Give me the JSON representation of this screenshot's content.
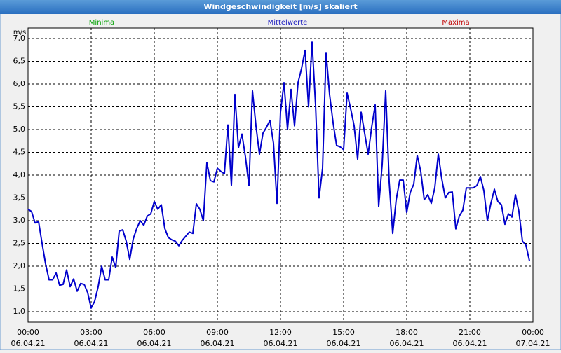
{
  "chart_data": {
    "type": "line",
    "title": "Windgeschwindigkeit [m/s] skaliert",
    "ylabel": "m/s",
    "legend": [
      {
        "name": "Minima",
        "color": "#00a000"
      },
      {
        "name": "Mittelwerte",
        "color": "#2020c0"
      },
      {
        "name": "Maxima",
        "color": "#c00000"
      }
    ],
    "series": [
      {
        "name": "Mittelwerte",
        "color": "#0000cc",
        "x": [
          0,
          10,
          20,
          30,
          40,
          50,
          60,
          70,
          80,
          90,
          100,
          110,
          120,
          130,
          140,
          150,
          160,
          170,
          180,
          190,
          200,
          210,
          220,
          230,
          240,
          250,
          260,
          270,
          280,
          290,
          300,
          310,
          320,
          330,
          340,
          350,
          360,
          370,
          380,
          390,
          400,
          410,
          420,
          430,
          440,
          450,
          460,
          470,
          480,
          490,
          500,
          510,
          520,
          530,
          540,
          550,
          560,
          570,
          580,
          590,
          600,
          610,
          620,
          630,
          640,
          650,
          660,
          670,
          680,
          690,
          700,
          710,
          720,
          730,
          740,
          750,
          760,
          770,
          780,
          790,
          800,
          810,
          820,
          830,
          840,
          850,
          860,
          870,
          880,
          890,
          900,
          910,
          920,
          930,
          940,
          950,
          960,
          970,
          980,
          990,
          1000,
          1010,
          1020,
          1030,
          1040,
          1050,
          1060,
          1070,
          1080,
          1090,
          1100,
          1110,
          1120,
          1130,
          1140,
          1150,
          1160,
          1170,
          1180,
          1190,
          1200,
          1210,
          1220,
          1230,
          1240,
          1250,
          1260,
          1270,
          1280,
          1290,
          1300,
          1310,
          1320,
          1330,
          1340,
          1350,
          1360,
          1370,
          1380,
          1390,
          1400,
          1410,
          1420,
          1430
        ],
        "values": [
          3.25,
          3.2,
          2.95,
          2.98,
          2.5,
          2.05,
          1.7,
          1.7,
          1.85,
          1.58,
          1.6,
          1.92,
          1.55,
          1.72,
          1.45,
          1.62,
          1.6,
          1.42,
          1.08,
          1.23,
          1.55,
          2.0,
          1.7,
          1.7,
          2.2,
          1.97,
          2.77,
          2.8,
          2.55,
          2.15,
          2.6,
          2.83,
          3.0,
          2.9,
          3.1,
          3.15,
          3.42,
          3.25,
          3.35,
          2.83,
          2.63,
          2.58,
          2.55,
          2.45,
          2.57,
          2.66,
          2.75,
          2.72,
          3.37,
          3.25,
          3.0,
          4.27,
          3.88,
          3.85,
          4.15,
          4.08,
          4.03,
          5.1,
          3.77,
          5.77,
          4.6,
          4.9,
          4.4,
          3.77,
          5.85,
          5.08,
          4.46,
          4.92,
          5.05,
          5.2,
          4.7,
          3.38,
          5.38,
          6.03,
          5.0,
          5.88,
          5.08,
          6.03,
          6.34,
          6.74,
          5.5,
          6.92,
          5.54,
          3.5,
          4.15,
          6.69,
          5.77,
          5.15,
          4.65,
          4.62,
          4.56,
          5.8,
          5.46,
          5.08,
          4.35,
          5.38,
          4.92,
          4.46,
          5.05,
          5.54,
          3.31,
          4.23,
          5.85,
          3.85,
          2.72,
          3.46,
          3.89,
          3.89,
          3.18,
          3.62,
          3.8,
          4.43,
          4.08,
          3.46,
          3.57,
          3.38,
          3.72,
          4.46,
          3.92,
          3.5,
          3.62,
          3.63,
          2.82,
          3.1,
          3.23,
          3.72,
          3.72,
          3.72,
          3.77,
          3.97,
          3.66,
          3.0,
          3.38,
          3.69,
          3.42,
          3.35,
          2.92,
          3.15,
          3.08,
          3.57,
          3.2,
          2.55,
          2.46,
          2.12
        ]
      }
    ],
    "xlim": [
      0,
      1440
    ],
    "xticks": [
      {
        "value": 0,
        "label": [
          "00:00",
          "06.04.21"
        ]
      },
      {
        "value": 180,
        "label": [
          "03:00",
          "06.04.21"
        ]
      },
      {
        "value": 360,
        "label": [
          "06:00",
          "06.04.21"
        ]
      },
      {
        "value": 540,
        "label": [
          "09:00",
          "06.04.21"
        ]
      },
      {
        "value": 720,
        "label": [
          "12:00",
          "06.04.21"
        ]
      },
      {
        "value": 900,
        "label": [
          "15:00",
          "06.04.21"
        ]
      },
      {
        "value": 1080,
        "label": [
          "18:00",
          "06.04.21"
        ]
      },
      {
        "value": 1260,
        "label": [
          "21:00",
          "06.04.21"
        ]
      },
      {
        "value": 1440,
        "label": [
          "00:00",
          "07.04.21"
        ]
      }
    ],
    "ylim": [
      0.77,
      7.23
    ],
    "yticks": [
      {
        "value": 1.0,
        "label": "1,0"
      },
      {
        "value": 1.5,
        "label": "1,5"
      },
      {
        "value": 2.0,
        "label": "2,0"
      },
      {
        "value": 2.5,
        "label": "2,5"
      },
      {
        "value": 3.0,
        "label": "3,0"
      },
      {
        "value": 3.5,
        "label": "3,5"
      },
      {
        "value": 4.0,
        "label": "4,0"
      },
      {
        "value": 4.5,
        "label": "4,5"
      },
      {
        "value": 5.0,
        "label": "5,0"
      },
      {
        "value": 5.5,
        "label": "5,5"
      },
      {
        "value": 6.0,
        "label": "6,0"
      },
      {
        "value": 6.5,
        "label": "6,5"
      },
      {
        "value": 7.0,
        "label": "7,0"
      }
    ],
    "grid": true
  }
}
